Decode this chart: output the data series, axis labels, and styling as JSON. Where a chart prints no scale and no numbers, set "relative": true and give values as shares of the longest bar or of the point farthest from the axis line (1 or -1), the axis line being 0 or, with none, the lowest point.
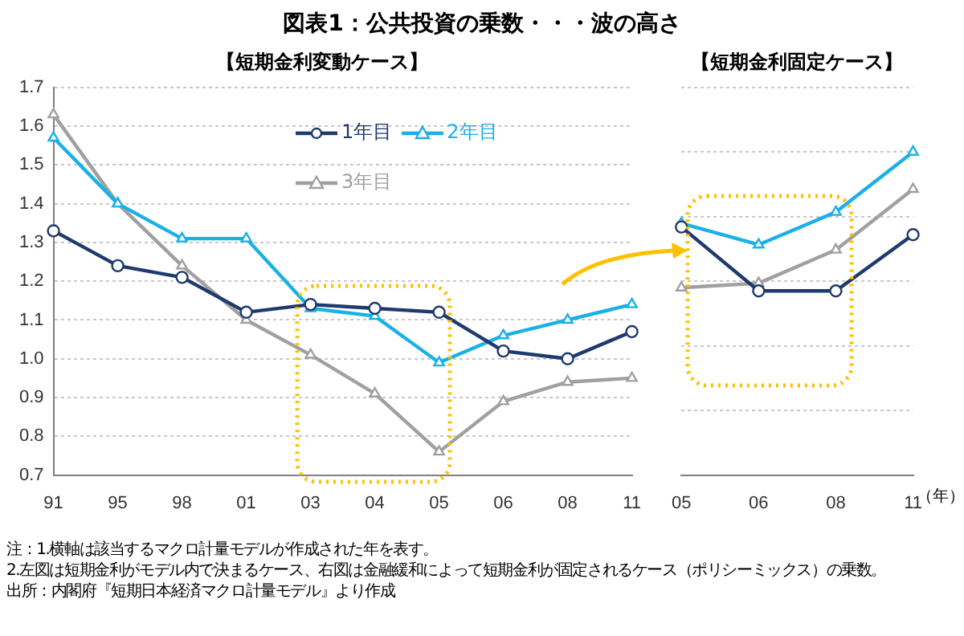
{
  "chart_data": [
    {
      "type": "line",
      "title": "図表1：公共投資の乗数・・・波の高さ",
      "subtitle": "【短期金利変動ケース】",
      "categories": [
        "91",
        "95",
        "98",
        "01",
        "03",
        "04",
        "05",
        "06",
        "08",
        "11"
      ],
      "series": [
        {
          "name": "1年目",
          "color": "#1f3a6e",
          "marker": "circle",
          "values": [
            1.33,
            1.24,
            1.21,
            1.12,
            1.14,
            1.13,
            1.12,
            1.02,
            1.0,
            1.07
          ]
        },
        {
          "name": "2年目",
          "color": "#1ab0e8",
          "marker": "triangle",
          "values": [
            1.57,
            1.4,
            1.31,
            1.31,
            1.13,
            1.11,
            0.99,
            1.06,
            1.1,
            1.14
          ]
        },
        {
          "name": "3年目",
          "color": "#a0a0a0",
          "marker": "triangle",
          "values": [
            1.63,
            1.4,
            1.24,
            1.1,
            1.01,
            0.91,
            0.76,
            0.89,
            0.94,
            0.95
          ]
        }
      ],
      "ylim": [
        0.7,
        1.7
      ],
      "yticks": [
        {
          "value": 0.7,
          "label": "0.7"
        },
        {
          "value": 0.8,
          "label": "0.8"
        },
        {
          "value": 0.9,
          "label": "0.9"
        },
        {
          "value": 1.0,
          "label": "1.0"
        },
        {
          "value": 1.1,
          "label": "1.1"
        },
        {
          "value": 1.2,
          "label": "1.2"
        },
        {
          "value": 1.3,
          "label": "1.3"
        },
        {
          "value": 1.4,
          "label": "1.4"
        },
        {
          "value": 1.5,
          "label": "1.5"
        },
        {
          "value": 1.6,
          "label": "1.6"
        },
        {
          "value": 1.7,
          "label": "1.7"
        }
      ],
      "grid": "y",
      "legend": "top right",
      "line_style": "solid",
      "annotations": [
        "注：1.横軸は該当するマクロ計量モデルが作成された年を表す。",
        "2.左図は短期金利がモデル内で決まるケース、右図は金融緩和によって短期金利が固定されるケース（ポリシーミックス）の乗数。",
        "出所：内閣府『短期日本経済マクロ計量モデル』より作成"
      ]
    },
    {
      "type": "line",
      "title": "【短期金利固定ケース】",
      "xlabel": "（年）",
      "relative": true,
      "categories": [
        "05",
        "06",
        "08",
        "11"
      ],
      "series": [
        {
          "color": "#1f3a6e",
          "marker": "circle",
          "values": [
            0.768,
            0.57,
            0.57,
            0.744
          ]
        },
        {
          "color": "#1ab0e8",
          "marker": "triangle",
          "values": [
            0.779,
            0.713,
            0.814,
            1
          ]
        },
        {
          "color": "#a0a0a0",
          "marker": "triangle",
          "values": [
            0.58,
            0.594,
            0.697,
            0.885
          ]
        }
      ],
      "grid": "y",
      "legend": false,
      "line_style": "solid"
    }
  ]
}
